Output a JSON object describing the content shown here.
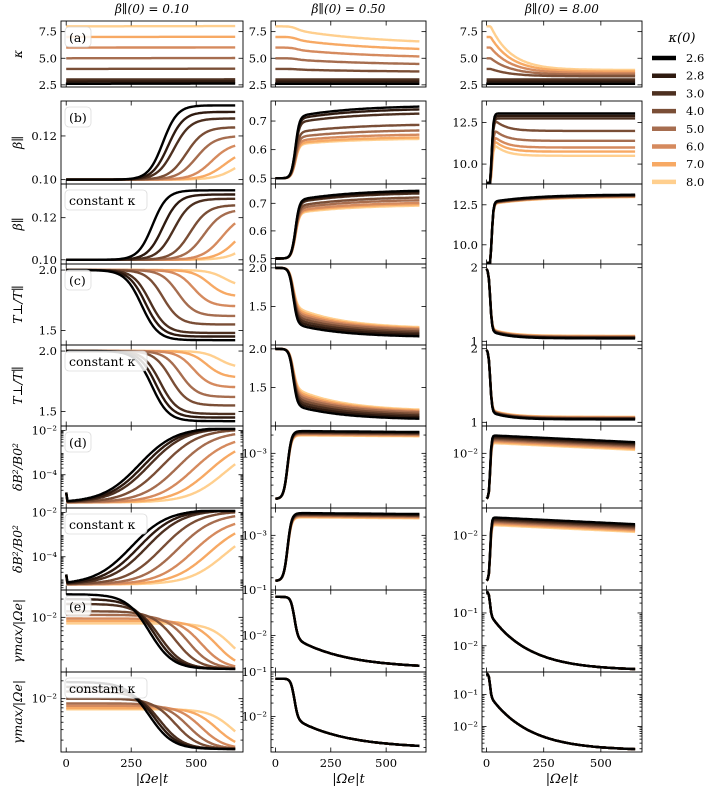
{
  "chart_data": {
    "type": "line",
    "columns": [
      {
        "title": "β∥(0) = 0.10",
        "beta0": 0.1
      },
      {
        "title": "β∥(0) = 0.50",
        "beta0": 0.5
      },
      {
        "title": "β∥(0) = 8.00",
        "beta0": 8.0
      }
    ],
    "xlabel": "|Ωe|t",
    "xlim": [
      -20,
      680
    ],
    "xticks": [
      0,
      250,
      500
    ],
    "legend": {
      "title": "κ(0)",
      "placement": "right",
      "entries": [
        "2.6",
        "2.8",
        "3.0",
        "4.0",
        "5.0",
        "6.0",
        "7.0",
        "8.0"
      ],
      "colors": [
        "#000000",
        "#2e1a10",
        "#4d3020",
        "#7a4e36",
        "#a66d4f",
        "#d58a5e",
        "#f7a964",
        "#ffcf8e"
      ]
    },
    "kappa0": [
      2.6,
      2.8,
      3.0,
      4.0,
      5.0,
      6.0,
      7.0,
      8.0
    ],
    "rows": [
      {
        "ylabel": "κ",
        "tag": "(a)",
        "scale": "linear",
        "ylims": [
          [
            2.3,
            8.5
          ],
          [
            2.3,
            8.5
          ],
          [
            2.3,
            8.5
          ]
        ],
        "yticks": [
          [
            2.5,
            5.0,
            7.5
          ],
          [
            2.5,
            5.0,
            7.5
          ],
          [
            2.5,
            5.0,
            7.5
          ]
        ],
        "yticklabels": [
          [
            "2.5",
            "5.0",
            "7.5"
          ],
          [
            "2.5",
            "5.0",
            "7.5"
          ],
          [
            "2.5",
            "5.0",
            "7.5"
          ]
        ]
      },
      {
        "ylabel": "β∥",
        "tag": "(b)",
        "scale": "linear",
        "ylims": [
          [
            0.098,
            0.136
          ],
          [
            0.48,
            0.77
          ],
          [
            8.8,
            13.8
          ]
        ],
        "yticks": [
          [
            0.1,
            0.12
          ],
          [
            0.5,
            0.6,
            0.7
          ],
          [
            10.0,
            12.5
          ]
        ],
        "yticklabels": [
          [
            "0.10",
            "0.12"
          ],
          [
            "0.5",
            "0.6",
            "0.7"
          ],
          [
            "10.0",
            "12.5"
          ]
        ]
      },
      {
        "ylabel": "β∥",
        "tag": "constant κ",
        "scale": "linear",
        "ylims": [
          [
            0.098,
            0.136
          ],
          [
            0.48,
            0.77
          ],
          [
            8.8,
            13.8
          ]
        ],
        "yticks": [
          [
            0.1,
            0.12
          ],
          [
            0.5,
            0.6,
            0.7
          ],
          [
            10.0,
            12.5
          ]
        ],
        "yticklabels": [
          [
            "0.10",
            "0.12"
          ],
          [
            "0.5",
            "0.6",
            "0.7"
          ],
          [
            "10.0",
            "12.5"
          ]
        ]
      },
      {
        "ylabel": "T⊥/T∥",
        "tag": "(c)",
        "scale": "linear",
        "ylims": [
          [
            1.38,
            2.05
          ],
          [
            1.0,
            2.05
          ],
          [
            0.95,
            2.05
          ]
        ],
        "yticks": [
          [
            1.5,
            2.0
          ],
          [
            1.5,
            2.0
          ],
          [
            1,
            2
          ]
        ],
        "yticklabels": [
          [
            "1.5",
            "2.0"
          ],
          [
            "1.5",
            "2.0"
          ],
          [
            "1",
            "2"
          ]
        ]
      },
      {
        "ylabel": "T⊥/T∥",
        "tag": "constant κ",
        "scale": "linear",
        "ylims": [
          [
            1.38,
            2.05
          ],
          [
            1.0,
            2.05
          ],
          [
            0.95,
            2.05
          ]
        ],
        "yticks": [
          [
            1.5,
            2.0
          ],
          [
            1.5,
            2.0
          ],
          [
            1,
            2
          ]
        ],
        "yticklabels": [
          [
            "1.5",
            "2.0"
          ],
          [
            "1.5",
            "2.0"
          ],
          [
            "1",
            "2"
          ]
        ]
      },
      {
        "ylabel": "δB²/B0²",
        "tag": "(d)",
        "scale": "log",
        "ylims": [
          [
            -5.5,
            -1.8
          ],
          [
            -3.9,
            -2.55
          ],
          [
            -2.6,
            -1.7
          ]
        ],
        "yticks": [
          [
            -4,
            -2
          ],
          [
            -3
          ],
          [
            -2
          ]
        ],
        "yticklabels": [
          [
            "10⁻⁴",
            "10⁻²"
          ],
          [
            "10⁻³"
          ],
          [
            "10⁻²"
          ]
        ]
      },
      {
        "ylabel": "δB²/B0²",
        "tag": "constant κ",
        "scale": "log",
        "ylims": [
          [
            -5.5,
            -1.8
          ],
          [
            -3.9,
            -2.55
          ],
          [
            -2.6,
            -1.7
          ]
        ],
        "yticks": [
          [
            -4,
            -2
          ],
          [
            -3
          ],
          [
            -2
          ]
        ],
        "yticklabels": [
          [
            "10⁻⁴",
            "10⁻²"
          ],
          [
            "10⁻³"
          ],
          [
            "10⁻²"
          ]
        ]
      },
      {
        "ylabel": "γmax/|Ωe|",
        "tag": "(e)",
        "scale": "log",
        "ylims": [
          [
            -2.9,
            -1.55
          ],
          [
            -2.8,
            -1.0
          ],
          [
            -2.8,
            -0.3
          ]
        ],
        "yticks": [
          [
            -2
          ],
          [
            -1,
            -2
          ],
          [
            -1,
            -2
          ]
        ],
        "yticklabels": [
          [
            "10⁻²"
          ],
          [
            "10⁻¹",
            "10⁻²"
          ],
          [
            "10⁻¹",
            "10⁻²"
          ]
        ]
      },
      {
        "ylabel": "γmax/|Ωe|",
        "tag": "constant κ",
        "scale": "log",
        "ylims": [
          [
            -2.9,
            -1.55
          ],
          [
            -2.8,
            -1.0
          ],
          [
            -2.8,
            -0.3
          ]
        ],
        "yticks": [
          [
            -2
          ],
          [
            -1,
            -2
          ],
          [
            -1,
            -2
          ]
        ],
        "yticklabels": [
          [
            "10⁻²"
          ],
          [
            "10⁻¹",
            "10⁻²"
          ],
          [
            "10⁻¹",
            "10⁻²"
          ]
        ]
      }
    ]
  }
}
